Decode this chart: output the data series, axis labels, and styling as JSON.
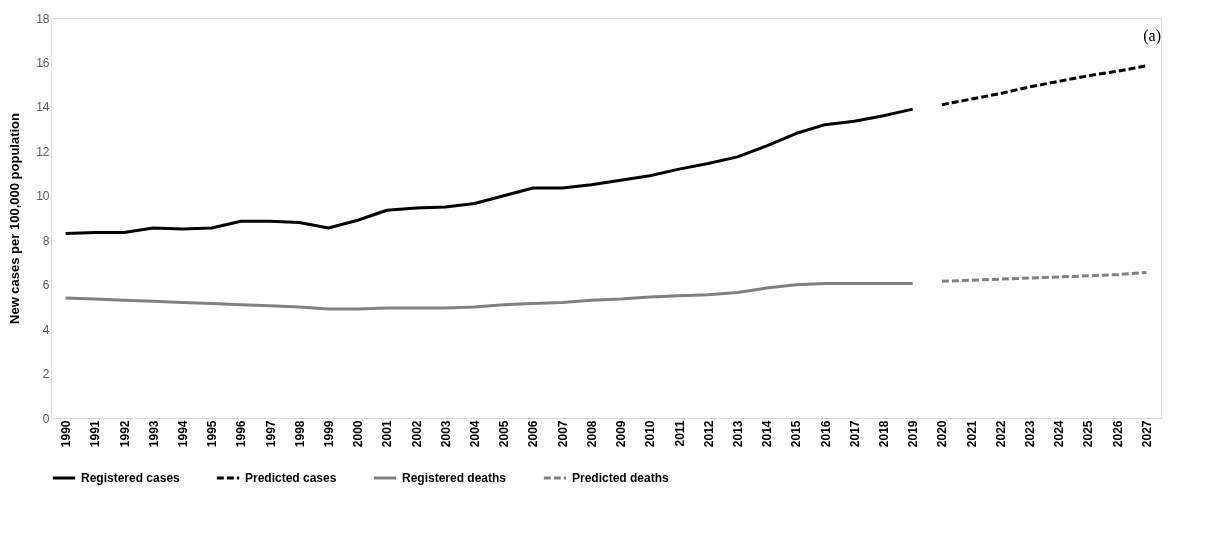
{
  "chart_data": {
    "type": "line",
    "ylabel": "New cases per 100,000 population",
    "annotations": [
      "(a)"
    ],
    "categories": [
      "1990",
      "1991",
      "1992",
      "1993",
      "1994",
      "1995",
      "1996",
      "1997",
      "1998",
      "1999",
      "2000",
      "2001",
      "2002",
      "2003",
      "2004",
      "2005",
      "2006",
      "2007",
      "2008",
      "2009",
      "2010",
      "2011",
      "2012",
      "2013",
      "2014",
      "2015",
      "2016",
      "2017",
      "2018",
      "2019",
      "2020",
      "2021",
      "2022",
      "2023",
      "2024",
      "2025",
      "2026",
      "2027"
    ],
    "ylim": [
      0,
      18
    ],
    "yticks": [
      0,
      2,
      4,
      6,
      8,
      10,
      12,
      14,
      16,
      18
    ],
    "grid": false,
    "legend": "bottom",
    "series": [
      {
        "name": "Registered cases",
        "color": "#000000",
        "line_style": "solid",
        "values": [
          8.3,
          8.35,
          8.35,
          8.55,
          8.5,
          8.55,
          8.85,
          8.85,
          8.8,
          8.55,
          8.9,
          9.35,
          9.45,
          9.5,
          9.65,
          10.0,
          10.35,
          10.35,
          10.5,
          10.7,
          10.9,
          11.2,
          11.45,
          11.75,
          12.25,
          12.8,
          13.2,
          13.35,
          13.6,
          13.9,
          null,
          null,
          null,
          null,
          null,
          null,
          null,
          null
        ]
      },
      {
        "name": "Predicted cases",
        "color": "#000000",
        "line_style": "dashed",
        "values": [
          null,
          null,
          null,
          null,
          null,
          null,
          null,
          null,
          null,
          null,
          null,
          null,
          null,
          null,
          null,
          null,
          null,
          null,
          null,
          null,
          null,
          null,
          null,
          null,
          null,
          null,
          null,
          null,
          null,
          null,
          14.1,
          14.35,
          14.6,
          14.9,
          15.15,
          15.4,
          15.6,
          15.85
        ]
      },
      {
        "name": "Registered deaths",
        "color": "#808080",
        "line_style": "solid",
        "values": [
          5.4,
          5.35,
          5.3,
          5.25,
          5.2,
          5.15,
          5.1,
          5.05,
          5.0,
          4.9,
          4.9,
          4.95,
          4.95,
          4.95,
          5.0,
          5.1,
          5.15,
          5.2,
          5.3,
          5.35,
          5.45,
          5.5,
          5.55,
          5.65,
          5.85,
          6.0,
          6.05,
          6.05,
          6.05,
          6.05,
          null,
          null,
          null,
          null,
          null,
          null,
          null,
          null
        ]
      },
      {
        "name": "Predicted deaths",
        "color": "#808080",
        "line_style": "dashed",
        "values": [
          null,
          null,
          null,
          null,
          null,
          null,
          null,
          null,
          null,
          null,
          null,
          null,
          null,
          null,
          null,
          null,
          null,
          null,
          null,
          null,
          null,
          null,
          null,
          null,
          null,
          null,
          null,
          null,
          null,
          null,
          6.15,
          6.2,
          6.25,
          6.3,
          6.35,
          6.4,
          6.45,
          6.55
        ]
      }
    ]
  }
}
